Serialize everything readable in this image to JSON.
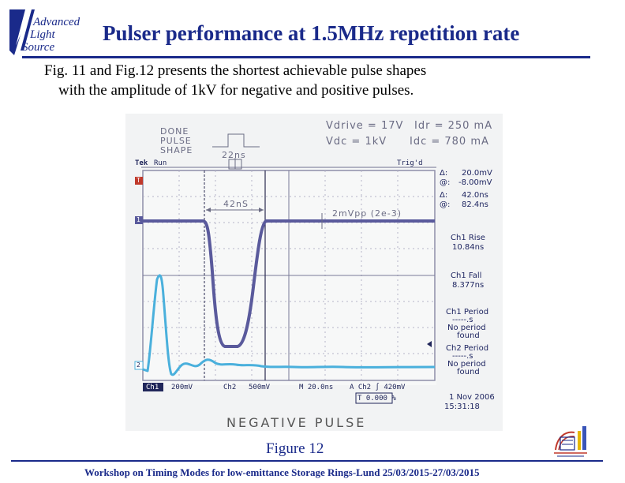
{
  "logo": {
    "words": [
      "Advanced",
      "Light",
      "Source"
    ],
    "color": "#1a2a8a"
  },
  "title": "Pulser performance at 1.5MHz repetition rate",
  "body": {
    "line1": "Fig. 11 and Fig.12 presents the shortest achievable pulse shapes",
    "line2": "with the amplitude of 1kV  for negative and positive pulses."
  },
  "figure": {
    "caption": "Figure 12",
    "handwritten": {
      "top_left": [
        "DONE",
        "PULSE",
        "SHAPE"
      ],
      "width_note": "22ns",
      "vdrive": "Vdrive = 17V",
      "idr": "Idr = 250 mA",
      "vdc": "Vdc = 1kV",
      "idc": "Idc = 780 mA",
      "pulse_width": "42nS",
      "ripple": "2mVpp (2e-3)",
      "bottom_label": "NEGATIVE PULSE"
    },
    "scope": {
      "brand": "Tek",
      "run_state": "Run",
      "trig_state": "Trig'd",
      "delta_v": "20.0mV",
      "at_v": "-8.00mV",
      "delta_t": "42.0ns",
      "at_t": "82.4ns",
      "delta_label": "Δ:",
      "at_label": "@:",
      "ch1_rise_label": "Ch1 Rise",
      "ch1_rise_value": "10.84ns",
      "ch1_fall_label": "Ch1 Fall",
      "ch1_fall_value": "8.377ns",
      "ch1_period_label": "Ch1 Period",
      "ch1_period_value": "-----.s",
      "no_period_1": "No period",
      "found_1": "found",
      "ch2_period_label": "Ch2 Period",
      "ch2_period_value": "-----.s",
      "no_period_2": "No period",
      "found_2": "found",
      "ch1": "Ch1",
      "ch1_scale": "200mV",
      "ch2": "Ch2",
      "ch2_scale": "500mV",
      "timebase": "M 20.0ns",
      "trigger": "A  Ch2  ∫  420mV",
      "position": "T 0.000 %",
      "date": "1 Nov 2006",
      "time": "15:31:18",
      "ch1_marker": "1",
      "ch2_marker": "2",
      "trig_marker": "T",
      "colors": {
        "ch1_trace": "#5a5a9c",
        "ch2_trace": "#4ab0dc",
        "grid": "#9a9ab0",
        "cursor": "#2a2a50"
      }
    }
  },
  "footer": "Workshop on Timing Modes for low-emittance Storage Rings-Lund 25/03/2015-27/03/2015"
}
